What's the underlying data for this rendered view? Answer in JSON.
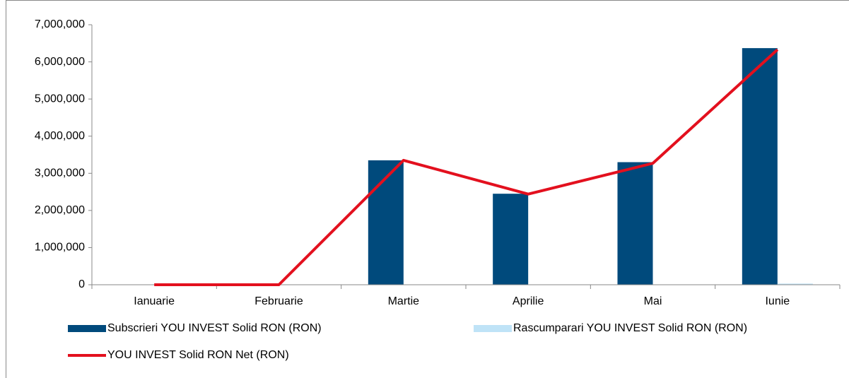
{
  "chart_data": {
    "type": "bar_line",
    "categories": [
      "Ianuarie",
      "Februarie",
      "Martie",
      "Aprilie",
      "Mai",
      "Iunie"
    ],
    "series": [
      {
        "name": "Subscrieri YOU INVEST Solid RON (RON)",
        "type": "bar",
        "color": "#004a7c",
        "values": [
          0,
          0,
          3350000,
          2450000,
          3300000,
          6370000
        ]
      },
      {
        "name": "Rascumparari YOU INVEST Solid RON (RON)",
        "type": "bar",
        "color": "#bfe3f7",
        "values": [
          0,
          0,
          0,
          0,
          0,
          30000
        ]
      },
      {
        "name": "YOU INVEST Solid RON Net (RON)",
        "type": "line",
        "color": "#e3101e",
        "values": [
          0,
          0,
          3350000,
          2440000,
          3270000,
          6330000
        ]
      }
    ],
    "ylim": [
      0,
      7000000
    ],
    "yticks": [
      0,
      {
        "value": 1000000,
        "label": "1,000,000"
      },
      {
        "value": 2000000,
        "label": "2,000,000"
      },
      {
        "value": 3000000,
        "label": "3,000,000"
      },
      {
        "value": 4000000,
        "label": "4,000,000"
      },
      {
        "value": 5000000,
        "label": "5,000,000"
      },
      {
        "value": 6000000,
        "label": "6,000,000"
      },
      {
        "value": 7000000,
        "label": "7,000,000"
      }
    ],
    "grid": false
  }
}
